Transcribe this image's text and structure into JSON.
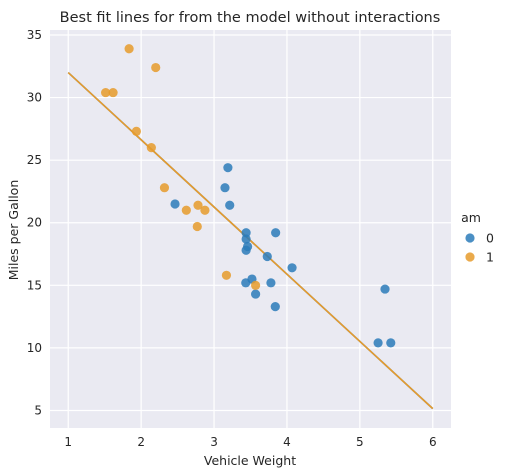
{
  "chart_data": {
    "type": "scatter",
    "title": "Best fit lines for from the model without interactions",
    "xlabel": "Vehicle Weight",
    "ylabel": "Miles per Gallon",
    "xlim": [
      0.75,
      6.25
    ],
    "ylim": [
      3.6,
      35.4
    ],
    "xticks": [
      1,
      2,
      3,
      4,
      5,
      6
    ],
    "yticks": [
      5,
      10,
      15,
      20,
      25,
      30,
      35
    ],
    "grid": true,
    "legend": {
      "title": "am",
      "placement": "right",
      "entries": [
        {
          "label": "0",
          "color": "#2b7bba"
        },
        {
          "label": "1",
          "color": "#e69b2c"
        }
      ]
    },
    "series": [
      {
        "name": "0",
        "color": "#2b7bba",
        "points": [
          [
            2.465,
            21.5
          ],
          [
            3.215,
            21.4
          ],
          [
            3.44,
            18.7
          ],
          [
            3.46,
            18.1
          ],
          [
            3.57,
            14.3
          ],
          [
            3.19,
            24.4
          ],
          [
            3.15,
            22.8
          ],
          [
            3.44,
            19.2
          ],
          [
            3.44,
            17.8
          ],
          [
            4.07,
            16.4
          ],
          [
            3.73,
            17.3
          ],
          [
            3.78,
            15.2
          ],
          [
            5.25,
            10.4
          ],
          [
            5.424,
            10.4
          ],
          [
            5.345,
            14.7
          ],
          [
            3.52,
            15.5
          ],
          [
            3.435,
            15.2
          ],
          [
            3.84,
            13.3
          ],
          [
            3.845,
            19.2
          ]
        ]
      },
      {
        "name": "1",
        "color": "#e69b2c",
        "points": [
          [
            2.62,
            21.0
          ],
          [
            2.875,
            21.0
          ],
          [
            2.32,
            22.8
          ],
          [
            2.2,
            32.4
          ],
          [
            1.615,
            30.4
          ],
          [
            1.835,
            33.9
          ],
          [
            1.935,
            27.3
          ],
          [
            2.14,
            26.0
          ],
          [
            1.513,
            30.4
          ],
          [
            3.17,
            15.8
          ],
          [
            3.57,
            15.0
          ],
          [
            2.78,
            21.4
          ],
          [
            2.77,
            19.7
          ]
        ]
      }
    ],
    "fit_lines": [
      {
        "series": "0",
        "color": "#2b7bba",
        "x": [
          1,
          6
        ],
        "y": [
          32.0,
          5.15
        ]
      },
      {
        "series": "1",
        "color": "#e69b2c",
        "x": [
          1,
          6
        ],
        "y": [
          32.0,
          5.15
        ]
      }
    ]
  }
}
